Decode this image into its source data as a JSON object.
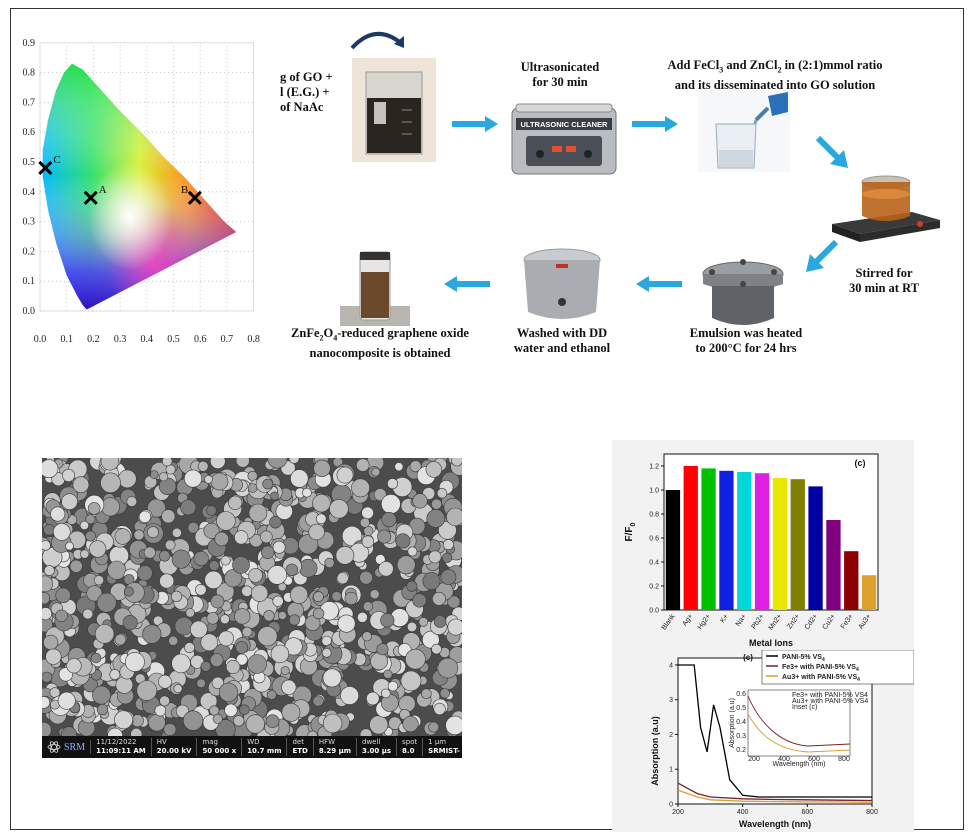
{
  "cie": {
    "x_ticks": [
      "0.0",
      "0.1",
      "0.2",
      "0.3",
      "0.4",
      "0.5",
      "0.6",
      "0.7",
      "0.8"
    ],
    "y_ticks": [
      "0.0",
      "0.1",
      "0.2",
      "0.3",
      "0.4",
      "0.5",
      "0.6",
      "0.7",
      "0.8",
      "0.9"
    ],
    "points": [
      {
        "label": "C",
        "x": 0.02,
        "y": 0.48
      },
      {
        "label": "A",
        "x": 0.19,
        "y": 0.38
      },
      {
        "label": "B",
        "x": 0.58,
        "y": 0.38
      }
    ]
  },
  "process": {
    "step1": [
      "g of GO +",
      "l (E.G.) +",
      "of NaAc"
    ],
    "step2": [
      "Ultrasonicated",
      "for 30 min"
    ],
    "step3_line1": "Add  FeCl",
    "step3_sub1": "3",
    "step3_mid": " and ZnCl",
    "step3_sub2": "2",
    "step3_end": " in (2:1)mmol ratio",
    "step3_line2": "and its disseminated into GO solution",
    "step4": [
      "Stirred for",
      "30 min at RT"
    ],
    "step5": [
      "Emulsion was heated",
      "to 200°C for 24 hrs"
    ],
    "step6": [
      "Washed with DD",
      "water and ethanol"
    ],
    "step7_a": "ZnFe",
    "step7_s1": "2",
    "step7_b": "O",
    "step7_s2": "4",
    "step7_c": "-reduced graphene oxide",
    "step7_line2": "nanocomposite is obtained",
    "cleaner_label": "ULTRASONIC CLEANER"
  },
  "sem": {
    "logo": "SRM",
    "fields": [
      {
        "label": "11/12/2022",
        "value": "11:09:11 AM"
      },
      {
        "label": "HV",
        "value": "20.00 kV"
      },
      {
        "label": "mag",
        "value": "50 000 x"
      },
      {
        "label": "WD",
        "value": "10.7 mm"
      },
      {
        "label": "det",
        "value": "ETD"
      },
      {
        "label": "HFW",
        "value": "8.29 µm"
      },
      {
        "label": "dwell",
        "value": "3.00 µs"
      },
      {
        "label": "spot",
        "value": "8.0"
      },
      {
        "label": "1 µm",
        "value": "SRMIST- Apreo S"
      }
    ]
  },
  "chart_data": [
    {
      "type": "bar",
      "panel_label": "(c)",
      "xlabel": "Metal Ions",
      "ylabel": "F/F",
      "ylabel_sub": "0",
      "ylim": [
        0,
        1.3
      ],
      "yticks": [
        "0.0",
        "0.2",
        "0.4",
        "0.6",
        "0.8",
        "1.0",
        "1.2"
      ],
      "categories": [
        "Blank",
        "Ag+",
        "Hg2+",
        "K+",
        "Na+",
        "Pb2+",
        "Mn2+",
        "Zn2+",
        "Cd2+",
        "Cu2+",
        "Fe3+",
        "Au3+"
      ],
      "values": [
        1.0,
        1.2,
        1.18,
        1.16,
        1.15,
        1.14,
        1.1,
        1.09,
        1.03,
        0.75,
        0.49,
        0.29
      ],
      "colors": [
        "#000000",
        "#ff0000",
        "#00c000",
        "#1020e0",
        "#00d8d8",
        "#e020e0",
        "#e8e800",
        "#808000",
        "#0000a0",
        "#800080",
        "#8b0000",
        "#e0a030"
      ]
    },
    {
      "type": "line",
      "panel_label": "(c)",
      "xlabel": "Wavelength (nm)",
      "ylabel": "Absorption (a.u)",
      "xlim": [
        200,
        800
      ],
      "ylim": [
        0,
        4.2
      ],
      "xticks": [
        "200",
        "400",
        "600",
        "800"
      ],
      "yticks": [
        "0",
        "1",
        "2",
        "3",
        "4"
      ],
      "series": [
        {
          "name": "PANI-5% VS",
          "sub": "4",
          "color": "#000000",
          "x": [
            200,
            250,
            270,
            290,
            310,
            330,
            360,
            400,
            450,
            500,
            600,
            700,
            800
          ],
          "y": [
            4.0,
            4.0,
            2.2,
            1.5,
            2.85,
            2.2,
            0.7,
            0.25,
            0.2,
            0.2,
            0.2,
            0.2,
            0.2
          ]
        },
        {
          "name": "Fe3+ with PANI-5% VS",
          "sub": "4",
          "color": "#7a1f2b",
          "x": [
            200,
            230,
            260,
            300,
            400,
            500,
            600,
            700,
            800
          ],
          "y": [
            0.6,
            0.45,
            0.3,
            0.2,
            0.15,
            0.13,
            0.12,
            0.11,
            0.1
          ]
        },
        {
          "name": "Au3+ with PANI-5% VS",
          "sub": "4",
          "color": "#d4a030",
          "x": [
            200,
            230,
            260,
            300,
            400,
            500,
            600,
            700,
            800
          ],
          "y": [
            0.4,
            0.3,
            0.2,
            0.12,
            0.08,
            0.07,
            0.06,
            0.06,
            0.05
          ]
        }
      ],
      "inset": {
        "xlabel": "Wavelength (nm)",
        "ylabel": "Absorption (a.u)",
        "yticks": [
          "0.2",
          "0.3",
          "0.4",
          "0.5",
          "0.6"
        ],
        "xticks": [
          "200",
          "400",
          "600",
          "800"
        ],
        "legend": [
          "Fe3+ with PANI-5% VS4",
          "Au3+ with PANI-5% VS4",
          "Inset (c)"
        ]
      }
    }
  ]
}
